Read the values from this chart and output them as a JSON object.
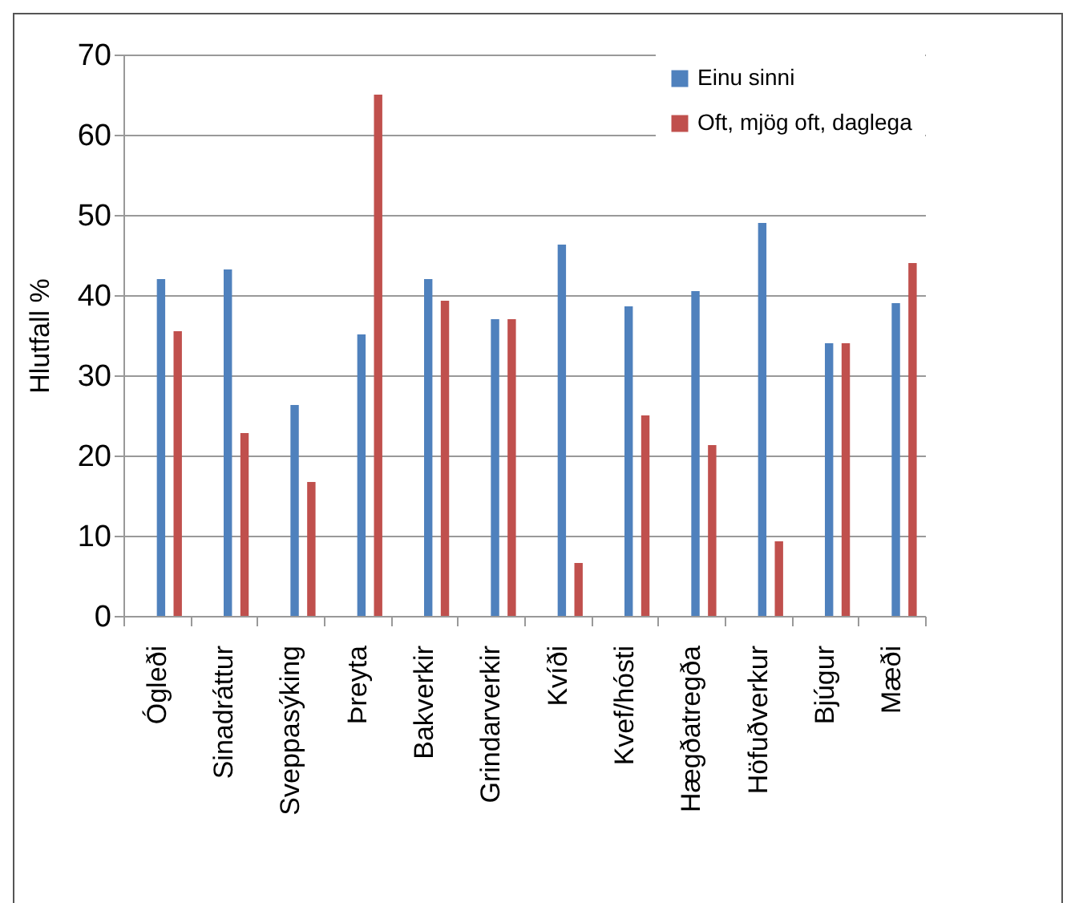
{
  "chart_data": {
    "type": "bar",
    "ylabel": "Hlutfall %",
    "categories": [
      "Ógleði",
      "Sinadráttur",
      "Sveppasýking",
      "Þreyta",
      "Bakverkir",
      "Grindarverkir",
      "Kvíði",
      "Kvef/hósti",
      "Hægðatregða",
      "Höfuðverkur",
      "Bjúgur",
      "Mæði"
    ],
    "series": [
      {
        "name": "Einu sinni",
        "color": "#4f81bd",
        "values": [
          42,
          43.2,
          26.3,
          35.1,
          42,
          37,
          46.3,
          38.6,
          40.5,
          49,
          34,
          39
        ]
      },
      {
        "name": "Oft, mjög oft, daglega",
        "color": "#c0504d",
        "values": [
          35.5,
          22.8,
          16.7,
          65,
          39.3,
          37,
          6.6,
          25,
          21.3,
          9.3,
          34,
          44
        ]
      }
    ],
    "ylim": [
      0,
      70
    ],
    "yticks": [
      0,
      10,
      20,
      30,
      40,
      50,
      60,
      70
    ],
    "grid": "y",
    "legend": "top right"
  }
}
